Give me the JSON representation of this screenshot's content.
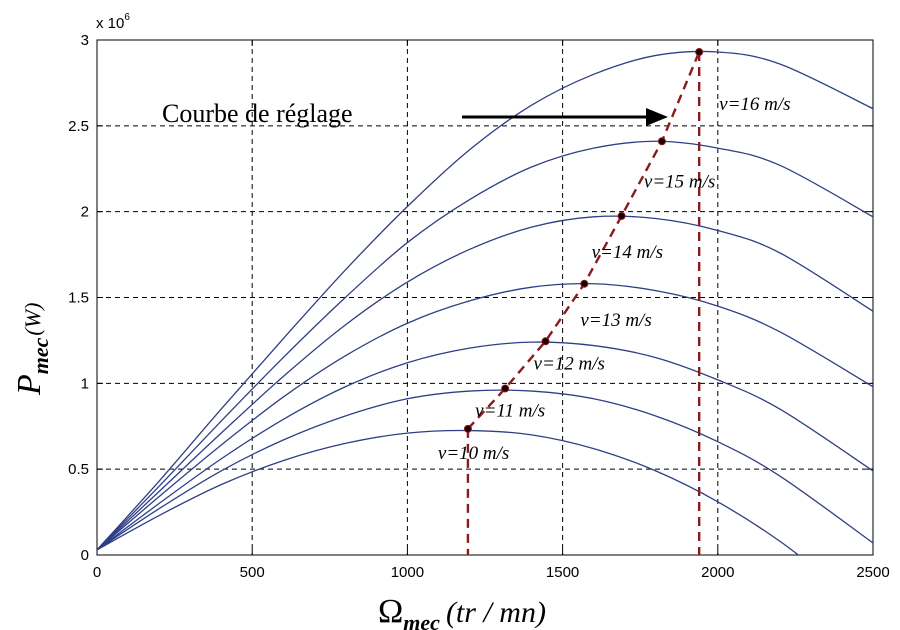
{
  "chart_data": {
    "type": "line",
    "xlabel": {
      "symbol": "Ω",
      "sub": "mec",
      "unit": "(tr / mn)"
    },
    "ylabel": {
      "symbol": "P",
      "sub": "mec",
      "unit": "(W)"
    },
    "y_multiplier": "x 10",
    "y_multiplier_exp": "6",
    "xlim": [
      0,
      2500
    ],
    "ylim": [
      0,
      3000000
    ],
    "x_ticks": [
      0,
      500,
      1000,
      1500,
      2000,
      2500
    ],
    "y_ticks": [
      0,
      500000,
      1000000,
      1500000,
      2000000,
      2500000,
      3000000
    ],
    "x_tick_labels": [
      "0",
      "500",
      "1000",
      "1500",
      "2000",
      "2500"
    ],
    "y_tick_labels": [
      "0",
      "0.5",
      "1",
      "1.5",
      "2",
      "2.5",
      "3"
    ],
    "grid": true,
    "annotation": "Courbe de réglage",
    "series": [
      {
        "name": "v=10 m/s",
        "x": [
          0,
          200,
          400,
          600,
          800,
          1000,
          1200,
          1400,
          1600,
          1800,
          2000,
          2200,
          2400
        ],
        "y": [
          30000,
          230000,
          410000,
          550000,
          650000,
          710000,
          725000,
          700000,
          620000,
          490000,
          310000,
          80000,
          -200000
        ]
      },
      {
        "name": "v=11 m/s",
        "x": [
          0,
          200,
          400,
          600,
          800,
          1000,
          1200,
          1400,
          1600,
          1800,
          2000,
          2200,
          2500
        ],
        "y": [
          30000,
          270000,
          490000,
          670000,
          810000,
          910000,
          955000,
          955000,
          910000,
          810000,
          660000,
          460000,
          70000
        ]
      },
      {
        "name": "v=12 m/s",
        "x": [
          0,
          200,
          400,
          600,
          800,
          1000,
          1200,
          1400,
          1600,
          1800,
          2000,
          2200,
          2500
        ],
        "y": [
          30000,
          300000,
          560000,
          790000,
          980000,
          1120000,
          1205000,
          1240000,
          1220000,
          1150000,
          1020000,
          850000,
          490000
        ]
      },
      {
        "name": "v=13 m/s",
        "x": [
          0,
          200,
          400,
          600,
          800,
          1000,
          1200,
          1400,
          1600,
          1800,
          2000,
          2200,
          2500
        ],
        "y": [
          30000,
          340000,
          640000,
          920000,
          1160000,
          1350000,
          1480000,
          1560000,
          1580000,
          1540000,
          1450000,
          1300000,
          980000
        ]
      },
      {
        "name": "v=14 m/s",
        "x": [
          0,
          200,
          400,
          600,
          800,
          1000,
          1200,
          1400,
          1600,
          1800,
          2000,
          2200,
          2500
        ],
        "y": [
          30000,
          370000,
          710000,
          1040000,
          1340000,
          1590000,
          1780000,
          1910000,
          1970000,
          1960000,
          1890000,
          1760000,
          1420000
        ]
      },
      {
        "name": "v=15 m/s",
        "x": [
          0,
          200,
          400,
          600,
          800,
          1000,
          1200,
          1400,
          1600,
          1800,
          2000,
          2200,
          2500
        ],
        "y": [
          30000,
          400000,
          780000,
          1150000,
          1500000,
          1820000,
          2070000,
          2260000,
          2370000,
          2410000,
          2370000,
          2270000,
          1970000
        ]
      },
      {
        "name": "v=16 m/s",
        "x": [
          0,
          200,
          400,
          600,
          800,
          1000,
          1200,
          1400,
          1600,
          1800,
          2000,
          2200,
          2500
        ],
        "y": [
          30000,
          430000,
          850000,
          1260000,
          1660000,
          2030000,
          2360000,
          2620000,
          2800000,
          2910000,
          2930000,
          2860000,
          2600000
        ]
      }
    ],
    "optimal_points": {
      "x": [
        1195,
        1315,
        1445,
        1570,
        1690,
        1820,
        1940
      ],
      "y": [
        735000,
        970000,
        1245000,
        1580000,
        1975000,
        2410000,
        2930000
      ]
    },
    "vertical_lines_x": [
      1195,
      1940
    ],
    "colors": {
      "curve": "#2f3f86",
      "control": "#8b1a1a",
      "grid": "#000000"
    }
  }
}
